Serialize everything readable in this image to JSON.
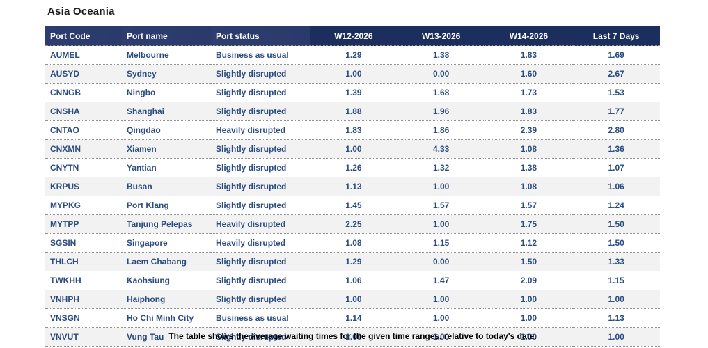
{
  "page": {
    "title": "Asia Oceania",
    "footnote": "The table shows the average waiting times for the given time ranges, relative to today's date."
  },
  "colors": {
    "header_bg_left": "#2e3d6f",
    "header_bg_right": "#1c2e5e",
    "header_text": "#ffffff",
    "cell_text": "#2b4c80",
    "row_stripe": "#f2f2f2",
    "row_divider": "#909090"
  },
  "table": {
    "columns": [
      "Port Code",
      "Port name",
      "Port status",
      "W12-2026",
      "W13-2026",
      "W14-2026",
      "Last 7 Days"
    ],
    "rows": [
      {
        "code": "AUMEL",
        "name": "Melbourne",
        "status": "Business as usual",
        "w12": "1.29",
        "w13": "1.38",
        "w14": "1.83",
        "last7": "1.69"
      },
      {
        "code": "AUSYD",
        "name": "Sydney",
        "status": "Slightly disrupted",
        "w12": "1.00",
        "w13": "0.00",
        "w14": "1.60",
        "last7": "2.67"
      },
      {
        "code": "CNNGB",
        "name": "Ningbo",
        "status": "Slightly disrupted",
        "w12": "1.39",
        "w13": "1.68",
        "w14": "1.73",
        "last7": "1.53"
      },
      {
        "code": "CNSHA",
        "name": "Shanghai",
        "status": "Slightly disrupted",
        "w12": "1.88",
        "w13": "1.96",
        "w14": "1.83",
        "last7": "1.77"
      },
      {
        "code": "CNTAO",
        "name": "Qingdao",
        "status": "Heavily disrupted",
        "w12": "1.83",
        "w13": "1.86",
        "w14": "2.39",
        "last7": "2.80"
      },
      {
        "code": "CNXMN",
        "name": "Xiamen",
        "status": "Slightly disrupted",
        "w12": "1.00",
        "w13": "4.33",
        "w14": "1.08",
        "last7": "1.36"
      },
      {
        "code": "CNYTN",
        "name": "Yantian",
        "status": "Slightly disrupted",
        "w12": "1.26",
        "w13": "1.32",
        "w14": "1.38",
        "last7": "1.07"
      },
      {
        "code": "KRPUS",
        "name": "Busan",
        "status": "Slightly disrupted",
        "w12": "1.13",
        "w13": "1.00",
        "w14": "1.08",
        "last7": "1.06"
      },
      {
        "code": "MYPKG",
        "name": "Port Klang",
        "status": "Slightly disrupted",
        "w12": "1.45",
        "w13": "1.57",
        "w14": "1.57",
        "last7": "1.24"
      },
      {
        "code": "MYTPP",
        "name": "Tanjung Pelepas",
        "status": "Heavily disrupted",
        "w12": "2.25",
        "w13": "1.00",
        "w14": "1.75",
        "last7": "1.50"
      },
      {
        "code": "SGSIN",
        "name": "Singapore",
        "status": "Heavily disrupted",
        "w12": "1.08",
        "w13": "1.15",
        "w14": "1.12",
        "last7": "1.50"
      },
      {
        "code": "THLCH",
        "name": "Laem Chabang",
        "status": "Slightly disrupted",
        "w12": "1.29",
        "w13": "0.00",
        "w14": "1.50",
        "last7": "1.33"
      },
      {
        "code": "TWKHH",
        "name": "Kaohsiung",
        "status": "Slightly disrupted",
        "w12": "1.06",
        "w13": "1.47",
        "w14": "2.09",
        "last7": "1.15"
      },
      {
        "code": "VNHPH",
        "name": "Haiphong",
        "status": "Slightly disrupted",
        "w12": "1.00",
        "w13": "1.00",
        "w14": "1.00",
        "last7": "1.00"
      },
      {
        "code": "VNSGN",
        "name": "Ho Chi Minh City",
        "status": "Business as usual",
        "w12": "1.14",
        "w13": "1.00",
        "w14": "1.00",
        "last7": "1.13"
      },
      {
        "code": "VNVUT",
        "name": "Vung Tau",
        "status": "Slightly disrupted",
        "w12": "1.00",
        "w13": "1.00",
        "w14": "1.00",
        "last7": "1.00"
      }
    ]
  },
  "chart_data": {
    "type": "table",
    "title": "Asia Oceania",
    "caption": "The table shows the average waiting times for the given time ranges, relative to today's date.",
    "columns": [
      "Port Code",
      "Port name",
      "Port status",
      "W12-2026",
      "W13-2026",
      "W14-2026",
      "Last 7 Days"
    ],
    "rows": [
      [
        "AUMEL",
        "Melbourne",
        "Business as usual",
        1.29,
        1.38,
        1.83,
        1.69
      ],
      [
        "AUSYD",
        "Sydney",
        "Slightly disrupted",
        1.0,
        0.0,
        1.6,
        2.67
      ],
      [
        "CNNGB",
        "Ningbo",
        "Slightly disrupted",
        1.39,
        1.68,
        1.73,
        1.53
      ],
      [
        "CNSHA",
        "Shanghai",
        "Slightly disrupted",
        1.88,
        1.96,
        1.83,
        1.77
      ],
      [
        "CNTAO",
        "Qingdao",
        "Heavily disrupted",
        1.83,
        1.86,
        2.39,
        2.8
      ],
      [
        "CNXMN",
        "Xiamen",
        "Slightly disrupted",
        1.0,
        4.33,
        1.08,
        1.36
      ],
      [
        "CNYTN",
        "Yantian",
        "Slightly disrupted",
        1.26,
        1.32,
        1.38,
        1.07
      ],
      [
        "KRPUS",
        "Busan",
        "Slightly disrupted",
        1.13,
        1.0,
        1.08,
        1.06
      ],
      [
        "MYPKG",
        "Port Klang",
        "Slightly disrupted",
        1.45,
        1.57,
        1.57,
        1.24
      ],
      [
        "MYTPP",
        "Tanjung Pelepas",
        "Heavily disrupted",
        2.25,
        1.0,
        1.75,
        1.5
      ],
      [
        "SGSIN",
        "Singapore",
        "Heavily disrupted",
        1.08,
        1.15,
        1.12,
        1.5
      ],
      [
        "THLCH",
        "Laem Chabang",
        "Slightly disrupted",
        1.29,
        0.0,
        1.5,
        1.33
      ],
      [
        "TWKHH",
        "Kaohsiung",
        "Slightly disrupted",
        1.06,
        1.47,
        2.09,
        1.15
      ],
      [
        "VNHPH",
        "Haiphong",
        "Slightly disrupted",
        1.0,
        1.0,
        1.0,
        1.0
      ],
      [
        "VNSGN",
        "Ho Chi Minh City",
        "Business as usual",
        1.14,
        1.0,
        1.0,
        1.13
      ],
      [
        "VNVUT",
        "Vung Tau",
        "Slightly disrupted",
        1.0,
        1.0,
        1.0,
        1.0
      ]
    ]
  }
}
